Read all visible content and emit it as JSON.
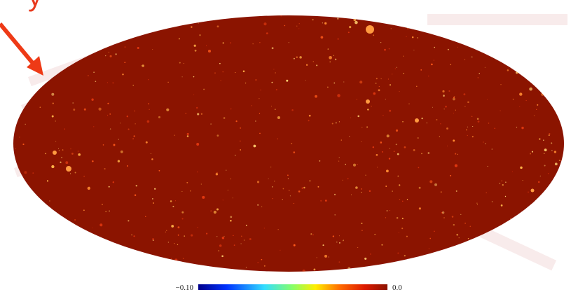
{
  "caption_fragment": "y",
  "colorbar": {
    "labels": [
      "−0.10",
      "0.0"
    ]
  }
}
